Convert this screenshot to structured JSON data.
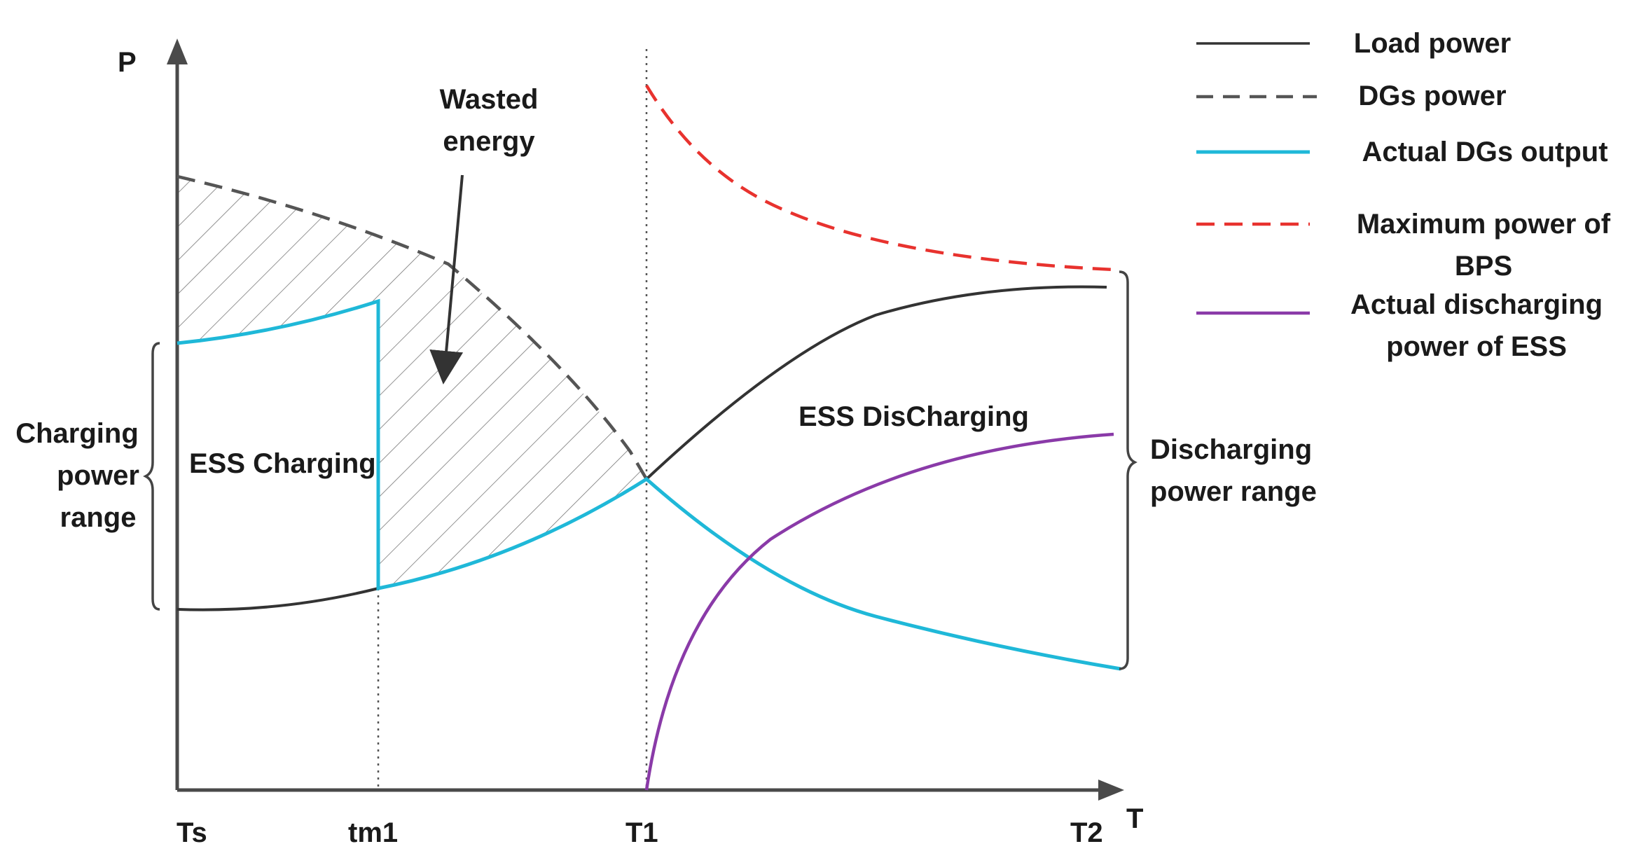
{
  "axes": {
    "y_label": "P",
    "x_label": "T",
    "x_ticks": [
      "Ts",
      "tm1",
      "T1",
      "T2"
    ]
  },
  "annotations": {
    "wasted_energy": [
      "Wasted",
      "energy"
    ],
    "ess_charging": "ESS Charging",
    "ess_discharging": "ESS DisCharging",
    "charging_range": [
      "Charging",
      "power",
      "range"
    ],
    "discharging_range": [
      "Discharging",
      "power range"
    ]
  },
  "legend": [
    {
      "lines": [
        "Load power"
      ],
      "style": "solid",
      "color": "#333333"
    },
    {
      "lines": [
        "DGs power"
      ],
      "style": "dashed",
      "color": "#555555"
    },
    {
      "lines": [
        "Actual DGs output"
      ],
      "style": "solid",
      "color": "#1fb8d8"
    },
    {
      "lines": [
        "Maximum power of",
        "BPS"
      ],
      "style": "dashed",
      "color": "#e8322e"
    },
    {
      "lines": [
        "Actual  discharging",
        "power of ESS"
      ],
      "style": "solid",
      "color": "#8a3aa8"
    }
  ],
  "colors": {
    "load": "#333333",
    "dgs": "#555555",
    "actual_dgs": "#1fb8d8",
    "max_bps": "#e8322e",
    "ess_discharge": "#8a3aa8",
    "hatch": "#666666",
    "axis": "#4a4a4a"
  }
}
